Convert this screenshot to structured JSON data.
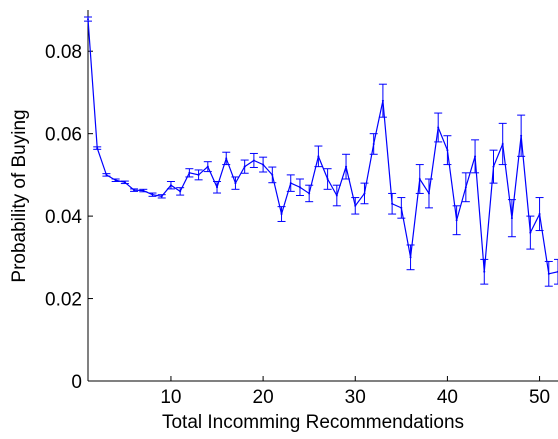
{
  "chart_data": {
    "type": "line",
    "title": "",
    "xlabel": "Total Incomming Recommendations",
    "ylabel": "Probability of Buying",
    "xlim": [
      1,
      52
    ],
    "ylim": [
      0,
      0.09
    ],
    "x_ticks": [
      10,
      20,
      30,
      40,
      50
    ],
    "y_ticks": [
      0,
      0.02,
      0.04,
      0.06,
      0.08
    ],
    "x_tick_labels": [
      "10",
      "20",
      "30",
      "40",
      "50"
    ],
    "y_tick_labels": [
      "0",
      "0.02",
      "0.04",
      "0.06",
      "0.08"
    ],
    "grid": false,
    "error_bars": true,
    "color": "#0000ff",
    "series": [
      {
        "x": [
          1,
          2,
          3,
          4,
          5,
          6,
          7,
          8,
          9,
          10,
          11,
          12,
          13,
          14,
          15,
          16,
          17,
          18,
          19,
          20,
          21,
          22,
          23,
          24,
          25,
          26,
          27,
          28,
          29,
          30,
          31,
          32,
          33,
          34,
          35,
          36,
          37,
          38,
          39,
          40,
          41,
          42,
          43,
          44,
          45,
          46,
          47,
          48,
          49,
          50,
          51,
          52
        ],
        "values": [
          0.0878,
          0.0565,
          0.05,
          0.0487,
          0.0482,
          0.0463,
          0.0462,
          0.0452,
          0.0448,
          0.0475,
          0.046,
          0.0505,
          0.05,
          0.052,
          0.047,
          0.054,
          0.048,
          0.052,
          0.0535,
          0.0525,
          0.05,
          0.0405,
          0.048,
          0.047,
          0.0455,
          0.0545,
          0.049,
          0.045,
          0.052,
          0.0425,
          0.0455,
          0.0575,
          0.068,
          0.043,
          0.042,
          0.03,
          0.049,
          0.0455,
          0.0615,
          0.056,
          0.039,
          0.047,
          0.0545,
          0.0265,
          0.052,
          0.0575,
          0.0395,
          0.0595,
          0.036,
          0.0405,
          0.026,
          0.0265
        ],
        "errors": [
          0.0005,
          0.0003,
          0.0003,
          0.0003,
          0.0003,
          0.0003,
          0.0003,
          0.0004,
          0.0004,
          0.0009,
          0.0009,
          0.001,
          0.0012,
          0.0012,
          0.0014,
          0.0015,
          0.0015,
          0.0016,
          0.0017,
          0.0018,
          0.0019,
          0.0018,
          0.002,
          0.002,
          0.002,
          0.0025,
          0.0025,
          0.0025,
          0.003,
          0.002,
          0.0025,
          0.0025,
          0.004,
          0.0025,
          0.0025,
          0.003,
          0.0035,
          0.0035,
          0.0035,
          0.0035,
          0.0035,
          0.0035,
          0.004,
          0.003,
          0.004,
          0.005,
          0.0045,
          0.005,
          0.004,
          0.004,
          0.003,
          0.003
        ]
      }
    ]
  }
}
